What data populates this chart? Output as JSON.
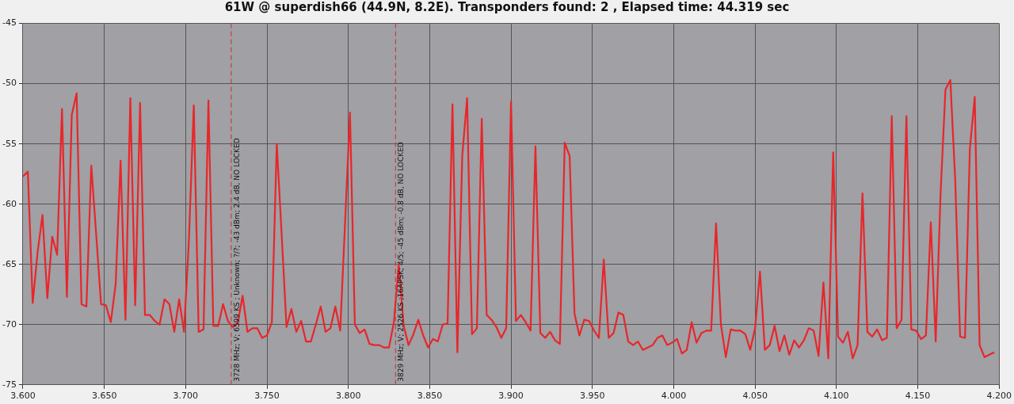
{
  "chart_data": {
    "type": "line",
    "title": "61W @ superdish66 (44.9N, 8.2E). Transponders found: 2 , Elapsed time: 44.319 sec",
    "x": [
      3.6,
      3.603,
      3.606,
      3.609,
      3.612,
      3.615,
      3.618,
      3.621,
      3.624,
      3.627,
      3.63,
      3.633,
      3.636,
      3.639,
      3.642,
      3.645,
      3.648,
      3.651,
      3.654,
      3.657,
      3.66,
      3.663,
      3.666,
      3.669,
      3.672,
      3.675,
      3.678,
      3.681,
      3.684,
      3.687,
      3.69,
      3.693,
      3.696,
      3.699,
      3.702,
      3.705,
      3.708,
      3.711,
      3.714,
      3.717,
      3.72,
      3.723,
      3.726,
      3.729,
      3.732,
      3.735,
      3.738,
      3.741,
      3.744,
      3.747,
      3.75,
      3.753,
      3.756,
      3.759,
      3.762,
      3.765,
      3.768,
      3.771,
      3.774,
      3.777,
      3.78,
      3.783,
      3.786,
      3.789,
      3.792,
      3.795,
      3.798,
      3.801,
      3.804,
      3.807,
      3.81,
      3.813,
      3.816,
      3.819,
      3.822,
      3.825,
      3.828,
      3.831,
      3.834,
      3.837,
      3.84,
      3.843,
      3.846,
      3.849,
      3.852,
      3.855,
      3.858,
      3.861,
      3.864,
      3.867,
      3.87,
      3.873,
      3.876,
      3.879,
      3.882,
      3.885,
      3.888,
      3.891,
      3.894,
      3.897,
      3.9,
      3.903,
      3.906,
      3.909,
      3.912,
      3.915,
      3.918,
      3.921,
      3.924,
      3.927,
      3.93,
      3.933,
      3.936,
      3.939,
      3.942,
      3.945,
      3.948,
      3.951,
      3.954,
      3.957,
      3.96,
      3.963,
      3.966,
      3.969,
      3.972,
      3.975,
      3.978,
      3.981,
      3.984,
      3.987,
      3.99,
      3.993,
      3.996,
      3.999,
      4.002,
      4.005,
      4.008,
      4.011,
      4.014,
      4.017,
      4.02,
      4.023,
      4.026,
      4.029,
      4.032,
      4.035,
      4.038,
      4.041,
      4.044,
      4.047,
      4.05,
      4.053,
      4.056,
      4.059,
      4.062,
      4.065,
      4.068,
      4.071,
      4.074,
      4.077,
      4.08,
      4.083,
      4.086,
      4.089,
      4.092,
      4.095,
      4.098,
      4.101,
      4.104,
      4.107,
      4.11,
      4.113,
      4.116,
      4.119,
      4.122,
      4.125,
      4.128,
      4.131,
      4.134,
      4.137,
      4.14,
      4.143,
      4.146,
      4.149,
      4.152,
      4.155,
      4.158,
      4.161,
      4.164,
      4.167,
      4.17,
      4.173,
      4.176,
      4.179,
      4.182,
      4.185,
      4.188,
      4.191,
      4.194,
      4.197
    ],
    "series": [
      {
        "color": "#e8262a",
        "values": [
          -57.7,
          -57.3,
          -68.2,
          -64.0,
          -60.9,
          -67.8,
          -62.7,
          -64.2,
          -52.1,
          -67.7,
          -52.6,
          -50.8,
          -68.3,
          -68.5,
          -56.8,
          -62.5,
          -68.3,
          -68.4,
          -69.8,
          -66.6,
          -56.4,
          -69.6,
          -51.2,
          -68.4,
          -51.6,
          -69.2,
          -69.2,
          -69.7,
          -70.0,
          -67.9,
          -68.3,
          -70.6,
          -67.9,
          -70.6,
          -63.0,
          -51.8,
          -70.6,
          -70.4,
          -51.4,
          -70.1,
          -70.1,
          -68.3,
          -69.7,
          -70.2,
          -69.9,
          -67.6,
          -70.6,
          -70.3,
          -70.3,
          -71.1,
          -70.9,
          -69.8,
          -55.0,
          -62.5,
          -70.2,
          -68.7,
          -70.6,
          -69.7,
          -71.4,
          -71.4,
          -70.0,
          -68.5,
          -70.6,
          -70.3,
          -68.5,
          -70.5,
          -61.5,
          -52.4,
          -70.0,
          -70.7,
          -70.4,
          -71.6,
          -71.7,
          -71.7,
          -71.9,
          -71.9,
          -69.8,
          -65.0,
          -70.1,
          -71.7,
          -70.8,
          -69.6,
          -70.9,
          -71.9,
          -71.2,
          -71.4,
          -70.0,
          -69.9,
          -51.7,
          -72.3,
          -56.0,
          -51.2,
          -70.8,
          -70.3,
          -52.9,
          -69.2,
          -69.6,
          -70.2,
          -71.1,
          -70.3,
          -51.5,
          -69.7,
          -69.2,
          -69.8,
          -70.5,
          -55.2,
          -70.7,
          -71.1,
          -70.6,
          -71.3,
          -71.6,
          -54.9,
          -56.0,
          -69.1,
          -70.9,
          -69.6,
          -69.7,
          -70.5,
          -71.1,
          -64.6,
          -71.1,
          -70.7,
          -69.0,
          -69.2,
          -71.4,
          -71.7,
          -71.4,
          -72.1,
          -71.9,
          -71.7,
          -71.1,
          -70.9,
          -71.7,
          -71.5,
          -71.2,
          -72.4,
          -72.1,
          -69.8,
          -71.5,
          -70.7,
          -70.5,
          -70.5,
          -61.6,
          -70.0,
          -72.7,
          -70.4,
          -70.5,
          -70.5,
          -70.8,
          -72.1,
          -70.3,
          -65.6,
          -72.1,
          -71.7,
          -70.1,
          -72.2,
          -70.9,
          -72.5,
          -71.3,
          -71.9,
          -71.3,
          -70.3,
          -70.5,
          -72.6,
          -66.5,
          -72.8,
          -55.7,
          -71.0,
          -71.5,
          -70.6,
          -72.8,
          -71.7,
          -59.1,
          -70.6,
          -71.0,
          -70.4,
          -71.3,
          -71.1,
          -52.7,
          -70.3,
          -69.6,
          -52.7,
          -70.4,
          -70.5,
          -71.2,
          -70.9,
          -61.5,
          -71.4,
          -59.1,
          -50.5,
          -49.7,
          -58.0,
          -71.0,
          -71.1,
          -55.4,
          -51.1,
          -71.7,
          -72.7,
          -72.5,
          -72.3
        ]
      }
    ],
    "xlim": [
      3.6,
      4.2
    ],
    "xticks": [
      {
        "value": 3.6,
        "label": "3.600"
      },
      {
        "value": 3.65,
        "label": "3.650"
      },
      {
        "value": 3.7,
        "label": "3.700"
      },
      {
        "value": 3.75,
        "label": "3.750"
      },
      {
        "value": 3.8,
        "label": "3.800"
      },
      {
        "value": 3.85,
        "label": "3.850"
      },
      {
        "value": 3.9,
        "label": "3.900"
      },
      {
        "value": 3.95,
        "label": "3.950"
      },
      {
        "value": 4.0,
        "label": "4.000"
      },
      {
        "value": 4.05,
        "label": "4.050"
      },
      {
        "value": 4.1,
        "label": "4.100"
      },
      {
        "value": 4.15,
        "label": "4.150"
      },
      {
        "value": 4.2,
        "label": "4.200"
      }
    ],
    "ylim": [
      -75,
      -45
    ],
    "yticks": [
      -75,
      -70,
      -65,
      -60,
      -55,
      -50,
      -45
    ],
    "ref_lines": [
      {
        "axis": "x",
        "value": 3.728,
        "label": "3728 MHz; V; 6599 KS ; Unknown; ?/?; -43 dBm; 2.4 dB, NO LOCKED",
        "color": "#d42a2a",
        "line_style": "dashed"
      },
      {
        "axis": "x",
        "value": 3.829,
        "label": "3829 MHz; V; 2526 KS ;16APSK; 4/5; -45 dBm; -0.8 dB, NO LOCKED",
        "color": "#d42a2a",
        "line_style": "dashed"
      }
    ],
    "grid": true,
    "legend": false,
    "marker": "none",
    "line_style": "solid"
  }
}
